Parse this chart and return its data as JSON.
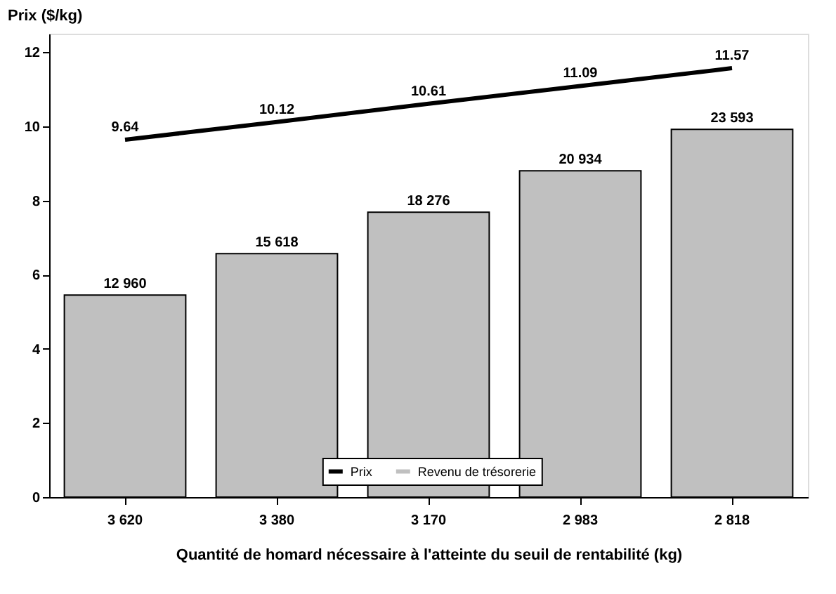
{
  "chart_data": {
    "type": "bar",
    "xlabel": "Quantité de homard nécessaire à l'atteinte du seuil de rentabilité (kg)",
    "ylabel": "Prix ($/kg)",
    "categories": [
      "3 620",
      "3 380",
      "3 170",
      "2 983",
      "2 818"
    ],
    "series": [
      {
        "name": "Prix",
        "type": "line",
        "color": "#000000",
        "values": [
          9.64,
          10.12,
          10.61,
          11.09,
          11.57
        ],
        "value_labels": [
          "9.64",
          "10.12",
          "10.61",
          "11.09",
          "11.57"
        ]
      },
      {
        "name": "Revenu de trésorerie",
        "axis": "y2",
        "color": "#c0c0c0",
        "values": [
          12960,
          15618,
          18276,
          20934,
          23593
        ],
        "value_labels": [
          "12 960",
          "15 618",
          "18 276",
          "20 934",
          "23 593"
        ]
      }
    ],
    "ylim": [
      0,
      12.5
    ],
    "yticks": [
      0,
      2,
      4,
      6,
      8,
      10,
      12
    ],
    "y2lim": [
      0,
      29730
    ],
    "grid": false,
    "legend": "bottom"
  }
}
